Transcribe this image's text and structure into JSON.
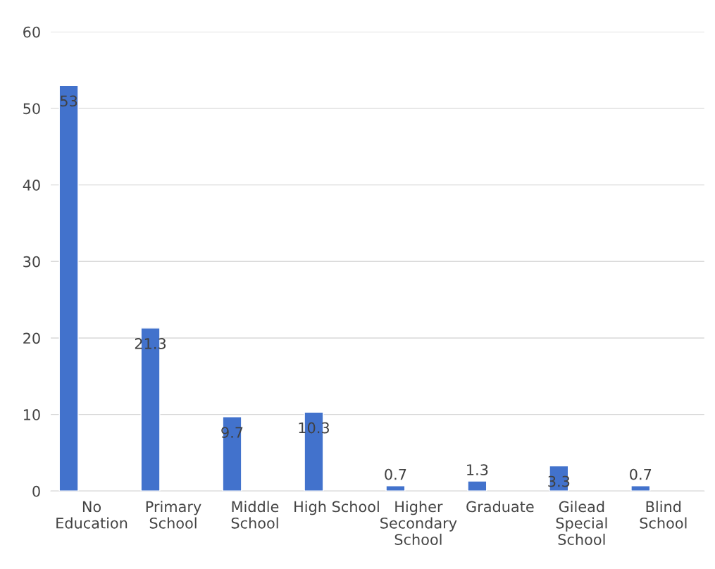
{
  "chart_data": {
    "type": "bar",
    "categories": [
      "No\nEducation",
      "Primary\nSchool",
      "Middle\nSchool",
      "High School",
      "Higher\nSecondary\nSchool",
      "Graduate",
      "Gilead\nSpecial\nSchool",
      "Blind\nSchool"
    ],
    "values": [
      53,
      21.3,
      9.7,
      10.3,
      0.7,
      1.3,
      3.3,
      0.7
    ],
    "color": "#4272cc",
    "ylim": [
      0,
      60
    ],
    "yticks": [
      0,
      10,
      20,
      30,
      40,
      50,
      60
    ],
    "grid": "y",
    "data_labels": true
  }
}
